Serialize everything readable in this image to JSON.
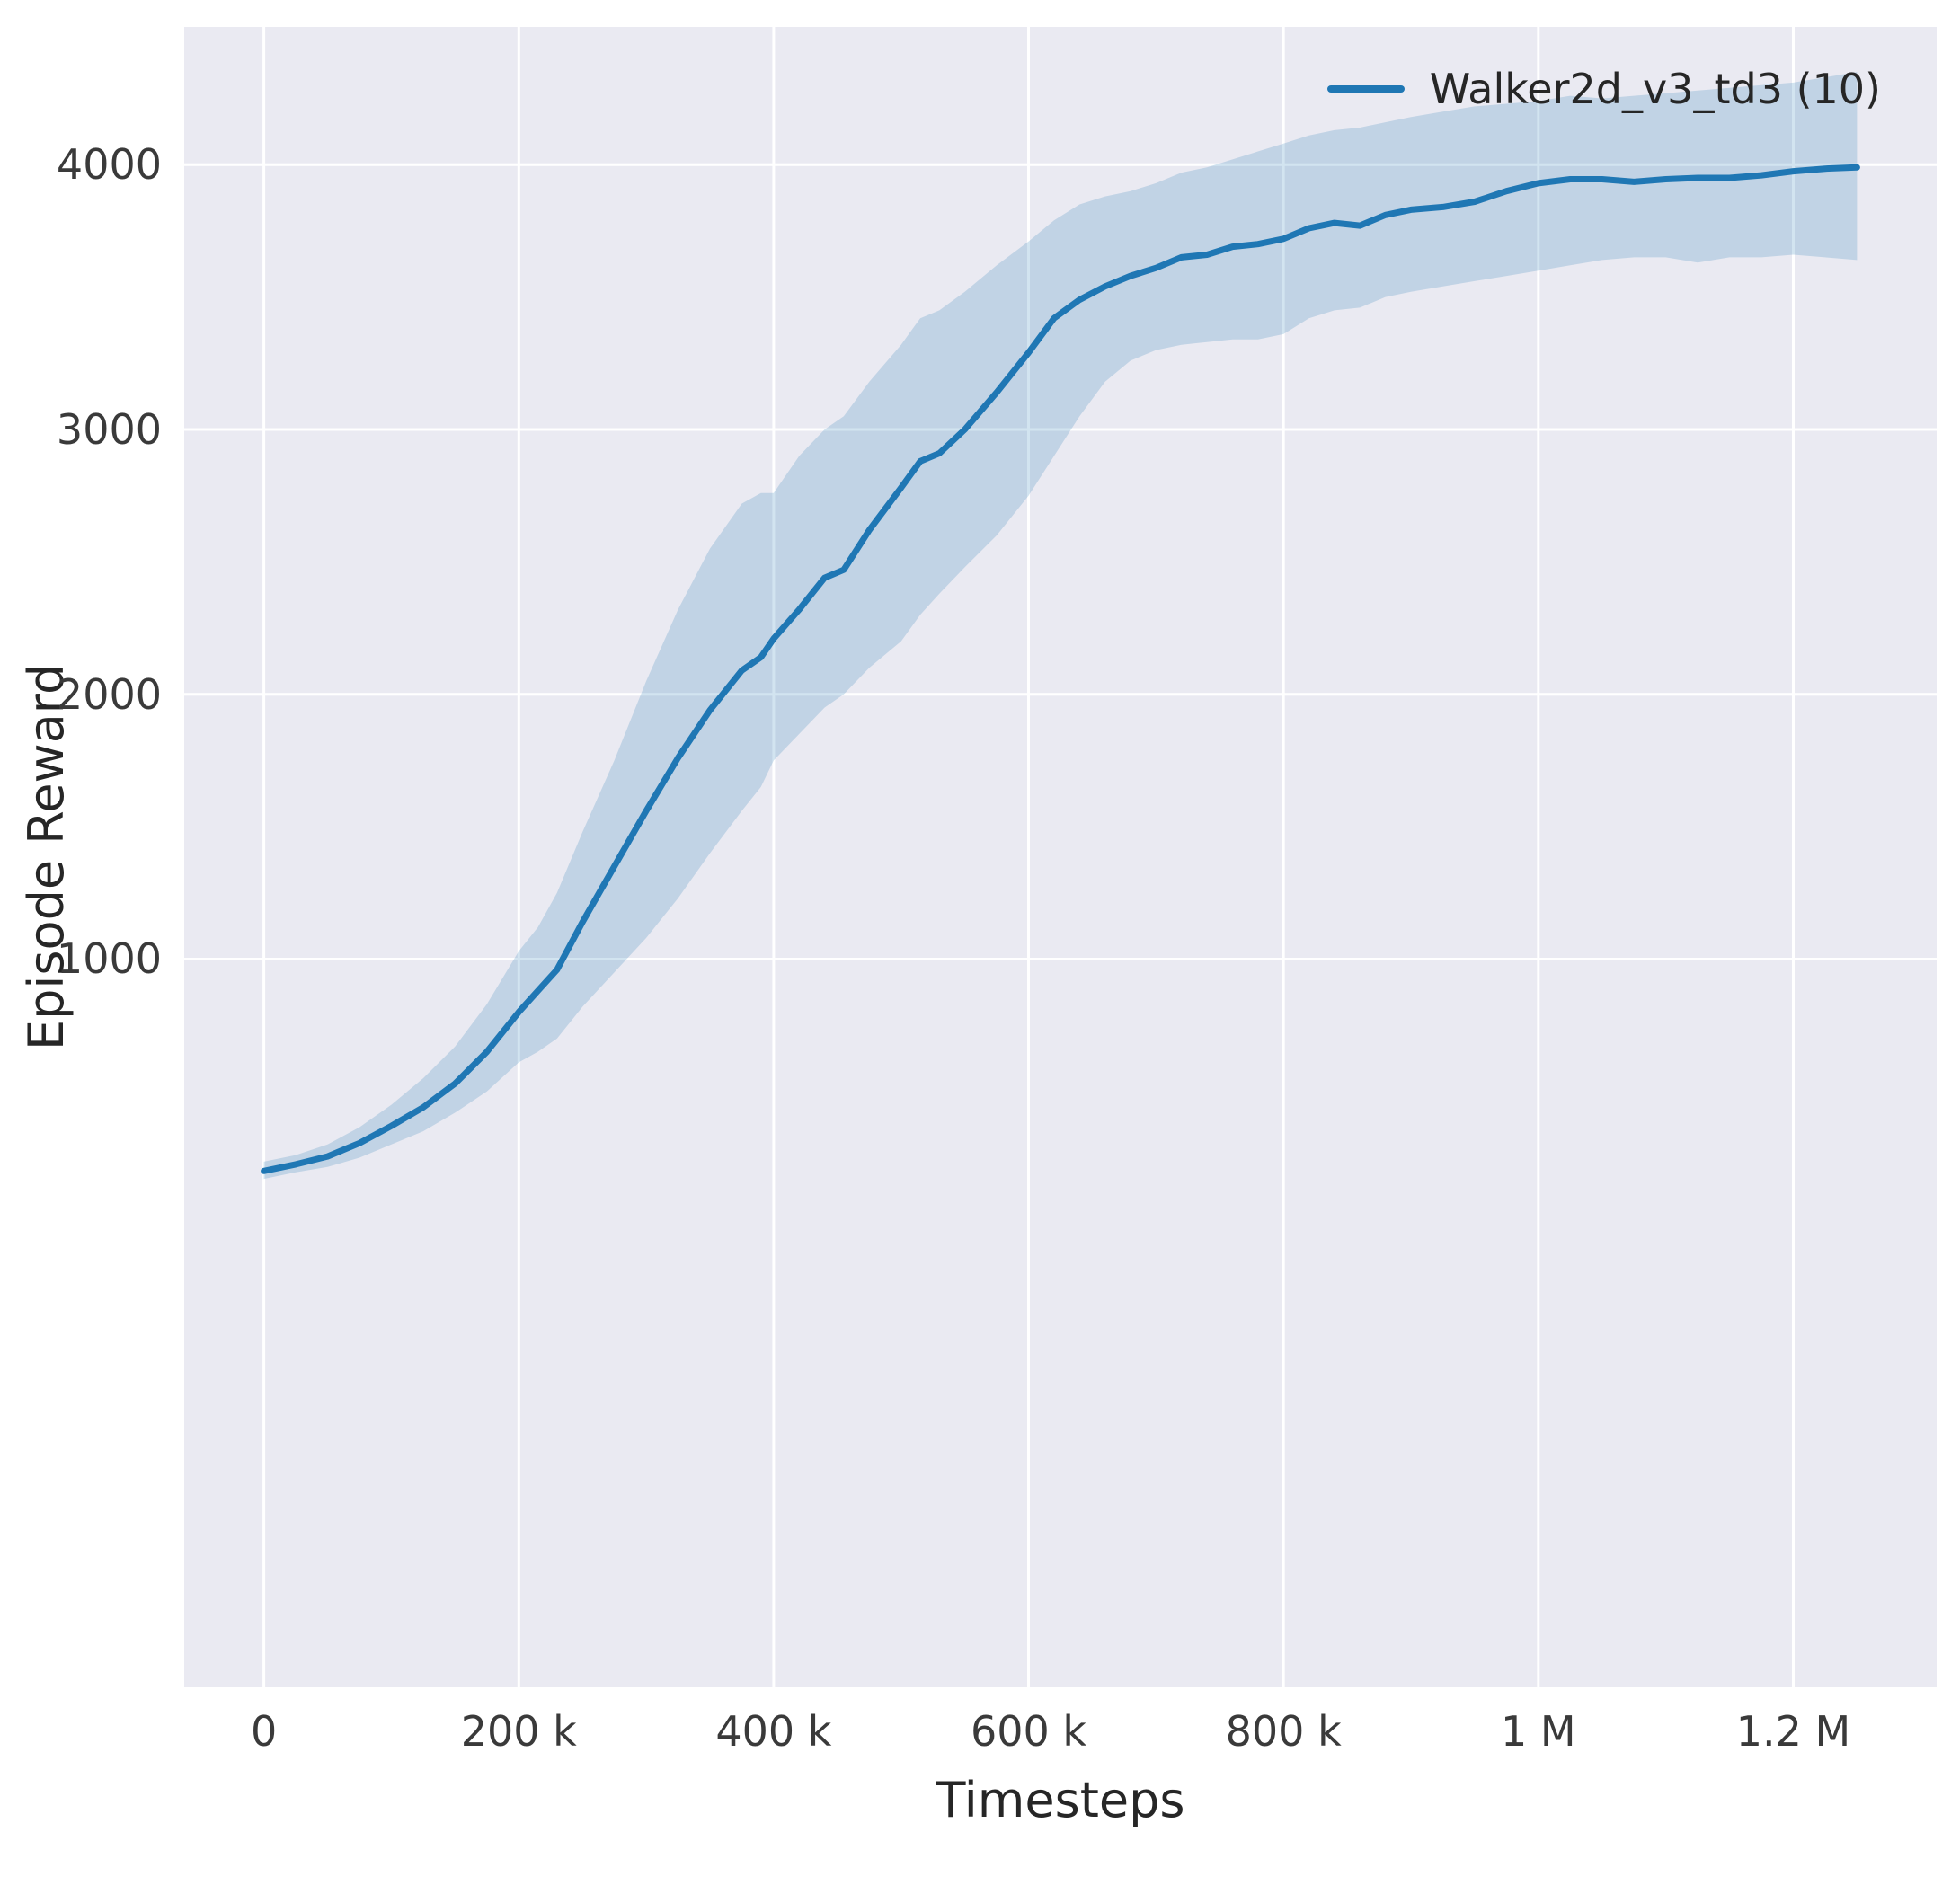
{
  "chart_data": {
    "type": "line",
    "title": "",
    "xlabel": "Timesteps",
    "ylabel": "Episode Reward",
    "grid": true,
    "legend_position": "upper right",
    "plot_background": "#eaeaf2",
    "grid_color": "#ffffff",
    "xlim": [
      -62500,
      1312500
    ],
    "ylim": [
      -1750,
      4520
    ],
    "x_ticks": {
      "values": [
        0,
        200000,
        400000,
        600000,
        800000,
        1000000,
        1200000
      ],
      "labels": [
        "0",
        "200 k",
        "400 k",
        "600 k",
        "800 k",
        "1 M",
        "1.2 M"
      ]
    },
    "y_ticks": {
      "values": [
        1000,
        2000,
        3000,
        4000
      ],
      "labels": [
        "1000",
        "2000",
        "3000",
        "4000"
      ]
    },
    "series": [
      {
        "name": "Walker2d_v3_td3 (10)",
        "color": "#1f77b4",
        "band_alpha": 0.2,
        "x": [
          0,
          25000,
          50000,
          75000,
          100000,
          125000,
          150000,
          175000,
          200000,
          215000,
          230000,
          250000,
          275000,
          300000,
          325000,
          350000,
          375000,
          390000,
          400000,
          420000,
          440000,
          455000,
          475000,
          500000,
          515000,
          530000,
          550000,
          575000,
          600000,
          620000,
          640000,
          660000,
          680000,
          700000,
          720000,
          740000,
          760000,
          780000,
          800000,
          820000,
          840000,
          860000,
          880000,
          900000,
          925000,
          950000,
          975000,
          1000000,
          1025000,
          1050000,
          1075000,
          1100000,
          1125000,
          1150000,
          1175000,
          1200000,
          1225000,
          1250000
        ],
        "mean": [
          200,
          225,
          255,
          305,
          370,
          440,
          530,
          650,
          800,
          880,
          960,
          1140,
          1350,
          1560,
          1760,
          1940,
          2090,
          2140,
          2210,
          2320,
          2440,
          2470,
          2620,
          2780,
          2880,
          2910,
          3000,
          3140,
          3290,
          3420,
          3490,
          3540,
          3580,
          3610,
          3650,
          3660,
          3690,
          3700,
          3720,
          3760,
          3780,
          3770,
          3810,
          3830,
          3840,
          3860,
          3900,
          3930,
          3945,
          3945,
          3935,
          3945,
          3950,
          3950,
          3960,
          3975,
          3985,
          3990
        ],
        "low": [
          170,
          195,
          215,
          250,
          300,
          350,
          420,
          500,
          610,
          650,
          700,
          820,
          950,
          1080,
          1230,
          1400,
          1560,
          1650,
          1750,
          1850,
          1950,
          2000,
          2100,
          2200,
          2300,
          2380,
          2480,
          2600,
          2750,
          2900,
          3050,
          3180,
          3260,
          3300,
          3320,
          3330,
          3340,
          3340,
          3360,
          3420,
          3450,
          3460,
          3500,
          3520,
          3540,
          3560,
          3580,
          3600,
          3620,
          3640,
          3650,
          3650,
          3630,
          3650,
          3650,
          3660,
          3650,
          3640
        ],
        "high": [
          235,
          260,
          300,
          365,
          450,
          550,
          670,
          830,
          1030,
          1120,
          1250,
          1480,
          1750,
          2050,
          2320,
          2550,
          2720,
          2760,
          2760,
          2900,
          3000,
          3050,
          3180,
          3320,
          3420,
          3450,
          3520,
          3620,
          3710,
          3790,
          3850,
          3880,
          3900,
          3930,
          3970,
          3990,
          4020,
          4050,
          4080,
          4110,
          4130,
          4140,
          4160,
          4180,
          4200,
          4220,
          4230,
          4240,
          4260,
          4250,
          4260,
          4270,
          4280,
          4290,
          4300,
          4310,
          4330,
          4350
        ]
      }
    ]
  }
}
